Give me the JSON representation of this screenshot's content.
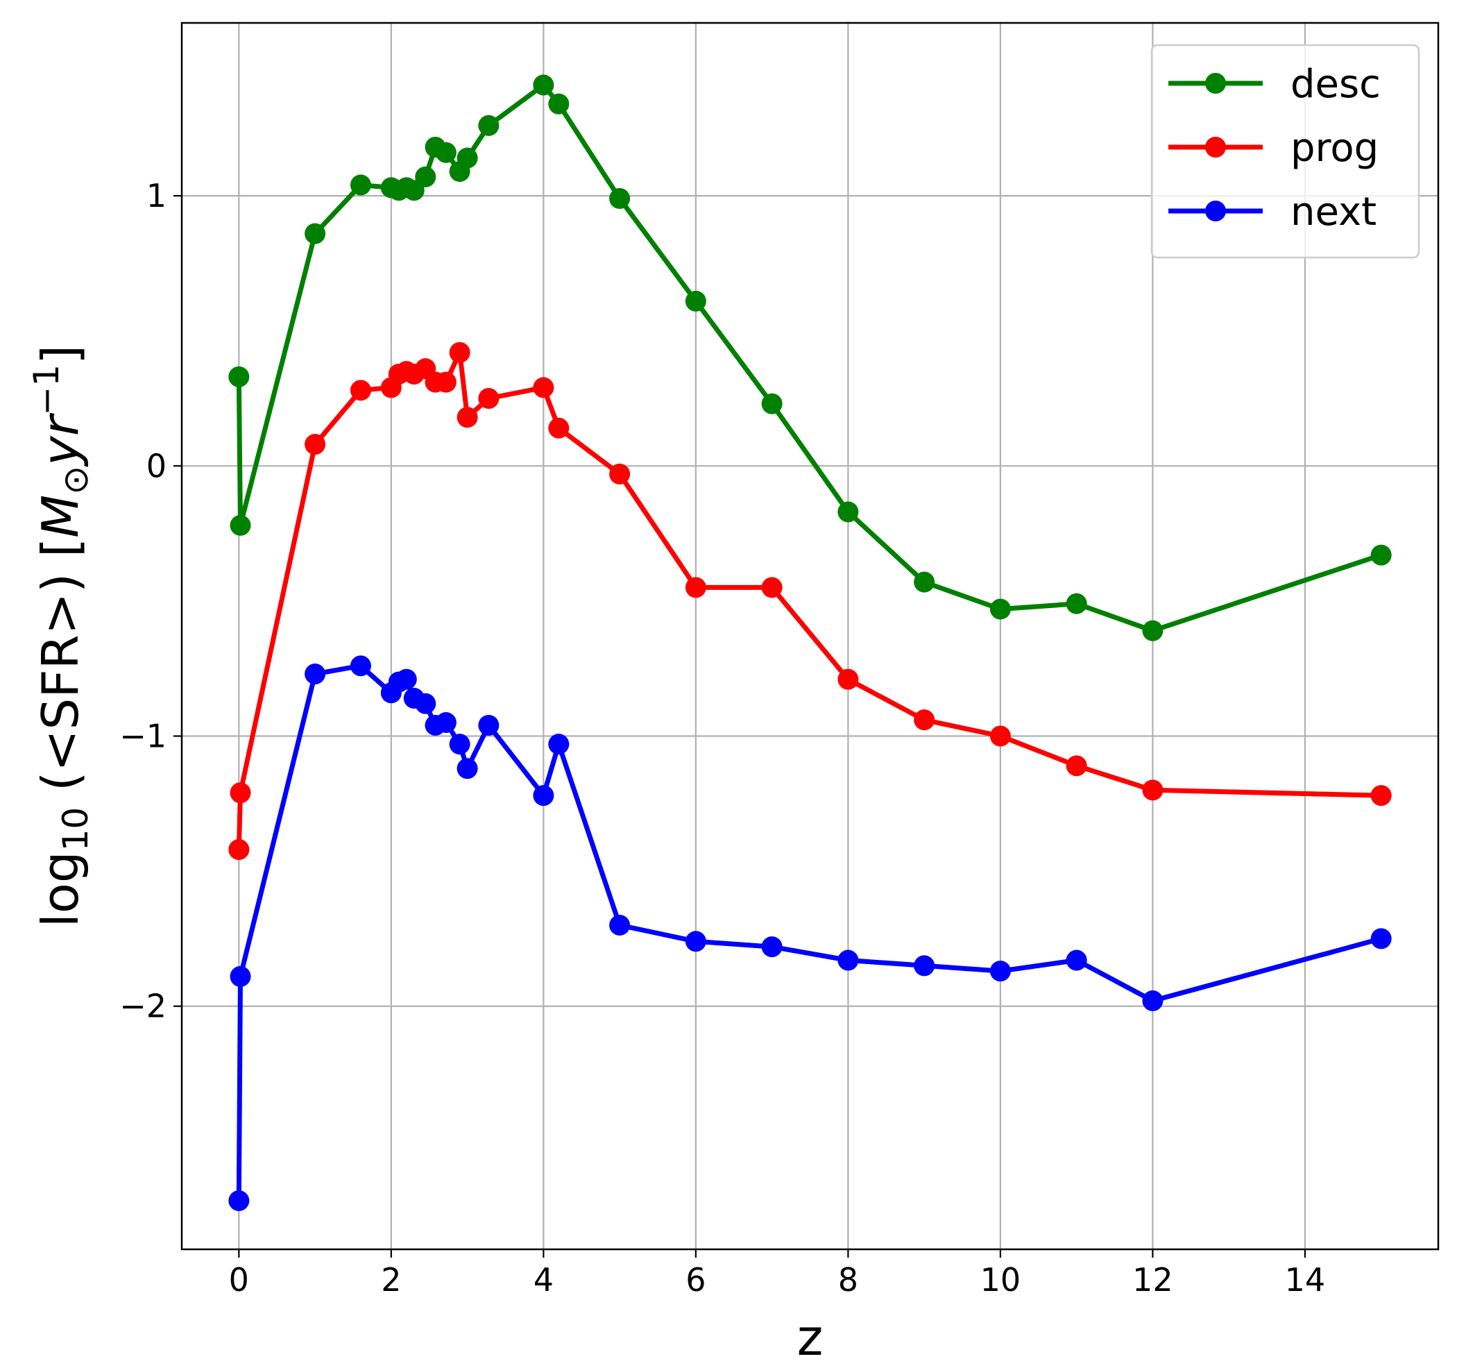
{
  "chart_data": {
    "type": "line",
    "xlabel": "z",
    "ylabel_parts": {
      "log": "log",
      "log_subscript": "10",
      "quantity": " (<SFR>) [",
      "mass": "M",
      "sun_subscript": "⊙",
      "rate": "yr",
      "exponent": "−1",
      "close": "]"
    },
    "xlim": [
      -0.75,
      15.75
    ],
    "ylim": [
      -2.9,
      1.64
    ],
    "xticks": [
      0,
      2,
      4,
      6,
      8,
      10,
      12,
      14
    ],
    "yticks": [
      -2,
      -1,
      0,
      1
    ],
    "xtick_labels": [
      "0",
      "2",
      "4",
      "6",
      "8",
      "10",
      "12",
      "14"
    ],
    "ytick_labels": [
      "−2",
      "−1",
      "0",
      "1"
    ],
    "grid": true,
    "legend_position": "top-right",
    "series": [
      {
        "name": "desc",
        "color": "#008000",
        "x": [
          0.0,
          0.02,
          1.0,
          1.6,
          2.0,
          2.1,
          2.2,
          2.3,
          2.45,
          2.58,
          2.72,
          2.9,
          3.0,
          3.28,
          4.0,
          4.2,
          5.0,
          6.0,
          7.0,
          8.0,
          9.0,
          10.0,
          11.0,
          12.0,
          15.0
        ],
        "y": [
          0.33,
          -0.22,
          0.86,
          1.04,
          1.03,
          1.02,
          1.03,
          1.02,
          1.07,
          1.18,
          1.16,
          1.09,
          1.14,
          1.26,
          1.41,
          1.34,
          0.99,
          0.61,
          0.23,
          -0.17,
          -0.43,
          -0.53,
          -0.51,
          -0.61,
          -0.33
        ]
      },
      {
        "name": "prog",
        "color": "#ff0000",
        "x": [
          0.0,
          0.02,
          1.0,
          1.6,
          2.0,
          2.1,
          2.2,
          2.3,
          2.45,
          2.58,
          2.72,
          2.9,
          3.0,
          3.28,
          4.0,
          4.2,
          5.0,
          6.0,
          7.0,
          8.0,
          9.0,
          10.0,
          11.0,
          12.0,
          15.0
        ],
        "y": [
          -1.42,
          -1.21,
          0.08,
          0.28,
          0.29,
          0.34,
          0.35,
          0.34,
          0.36,
          0.31,
          0.31,
          0.42,
          0.18,
          0.25,
          0.29,
          0.14,
          -0.03,
          -0.45,
          -0.45,
          -0.79,
          -0.94,
          -1.0,
          -1.11,
          -1.2,
          -1.22
        ]
      },
      {
        "name": "next",
        "color": "#0000ff",
        "x": [
          0.0,
          0.02,
          1.0,
          1.6,
          2.0,
          2.1,
          2.2,
          2.3,
          2.45,
          2.58,
          2.72,
          2.9,
          3.0,
          3.28,
          4.0,
          4.2,
          5.0,
          6.0,
          7.0,
          8.0,
          9.0,
          10.0,
          11.0,
          12.0,
          15.0
        ],
        "y": [
          -2.72,
          -1.89,
          -0.77,
          -0.74,
          -0.84,
          -0.8,
          -0.79,
          -0.86,
          -0.88,
          -0.96,
          -0.95,
          -1.03,
          -1.12,
          -0.96,
          -1.22,
          -1.03,
          -1.7,
          -1.76,
          -1.78,
          -1.83,
          -1.85,
          -1.87,
          -1.83,
          -1.98,
          -1.75
        ]
      }
    ]
  }
}
